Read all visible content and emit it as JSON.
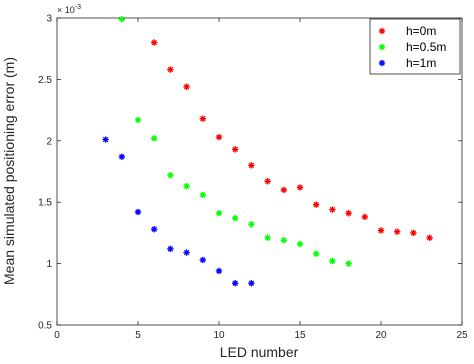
{
  "chart_data": {
    "type": "scatter",
    "xlabel": "LED number",
    "ylabel": "Mean simulated positioning error (m)",
    "exponent_label": "× 10",
    "exponent_power": "-3",
    "xlim": [
      0,
      25
    ],
    "ylim": [
      0.5,
      3
    ],
    "xticks": [
      0,
      5,
      10,
      15,
      20,
      25
    ],
    "yticks": [
      0.5,
      1,
      1.5,
      2,
      2.5,
      3
    ],
    "grid": false,
    "legend_position": "top-right",
    "marker": "*",
    "series": [
      {
        "name": "h=0m",
        "color": "#ff0000",
        "x": [
          6,
          7,
          8,
          9,
          10,
          11,
          12,
          13,
          14,
          15,
          16,
          17,
          18,
          19,
          20,
          21,
          22,
          23
        ],
        "y": [
          2.8,
          2.58,
          2.44,
          2.18,
          2.03,
          1.93,
          1.8,
          1.67,
          1.6,
          1.62,
          1.48,
          1.44,
          1.41,
          1.38,
          1.27,
          1.26,
          1.25,
          1.21
        ]
      },
      {
        "name": "h=0.5m",
        "color": "#00ff00",
        "x": [
          4,
          5,
          6,
          7,
          8,
          9,
          10,
          11,
          12,
          13,
          14,
          15,
          16,
          17,
          18
        ],
        "y": [
          2.99,
          2.17,
          2.02,
          1.72,
          1.63,
          1.56,
          1.41,
          1.37,
          1.32,
          1.21,
          1.19,
          1.16,
          1.08,
          1.02,
          1.0
        ]
      },
      {
        "name": "h=1m",
        "color": "#0000ff",
        "x": [
          3,
          4,
          5,
          6,
          7,
          8,
          9,
          10,
          11,
          12
        ],
        "y": [
          2.01,
          1.87,
          1.42,
          1.28,
          1.12,
          1.09,
          1.03,
          0.94,
          0.84,
          0.84
        ]
      }
    ]
  }
}
